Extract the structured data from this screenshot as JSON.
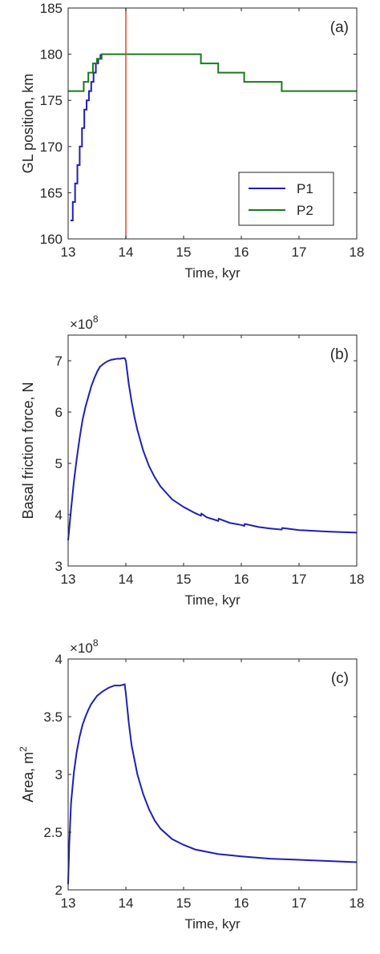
{
  "chart_data": [
    {
      "type": "line",
      "panel_label": "(a)",
      "xlabel": "Time, kyr",
      "ylabel": "GL position, km",
      "exponent": "",
      "xlim": [
        13,
        18
      ],
      "ylim": [
        160,
        185
      ],
      "xticks": [
        "13",
        "14",
        "15",
        "16",
        "17",
        "18"
      ],
      "yticks": [
        "160",
        "165",
        "170",
        "175",
        "180",
        "185"
      ],
      "legend_position": "lower-right",
      "series": [
        {
          "name": "P1",
          "color": "#1f1fb4",
          "style": "staircase",
          "x": [
            13.04,
            13.08,
            13.12,
            13.16,
            13.2,
            13.24,
            13.28,
            13.32,
            13.36,
            13.4,
            13.44,
            13.48,
            13.52,
            13.56
          ],
          "y": [
            162,
            164,
            166,
            168,
            170,
            172,
            174,
            175,
            176,
            177,
            178,
            179,
            179.5,
            180
          ]
        },
        {
          "name": "P2",
          "color": "#1a7a1a",
          "style": "staircase",
          "x": [
            13.0,
            13.27,
            13.35,
            13.43,
            13.5,
            13.58,
            14.0,
            15.0,
            15.3,
            15.6,
            16.05,
            16.7,
            18.0
          ],
          "y": [
            176,
            177,
            178,
            179,
            179.5,
            180,
            180,
            180,
            179,
            178,
            177,
            176,
            176
          ]
        },
        {
          "name": "",
          "color": "#e8432b",
          "style": "vertical-marker",
          "x": [
            14.0,
            14.0
          ],
          "y": [
            160,
            185
          ]
        }
      ]
    },
    {
      "type": "line",
      "panel_label": "(b)",
      "xlabel": "Time, kyr",
      "ylabel": "Basal friction force, N",
      "exponent": "8",
      "xlim": [
        13,
        18
      ],
      "ylim": [
        3,
        7.5
      ],
      "xticks": [
        "13",
        "14",
        "15",
        "16",
        "17",
        "18"
      ],
      "yticks": [
        "3",
        "4",
        "5",
        "6",
        "7"
      ],
      "series": [
        {
          "name": "",
          "color": "#1f1fb4",
          "x": [
            13.0,
            13.05,
            13.1,
            13.15,
            13.2,
            13.25,
            13.3,
            13.35,
            13.4,
            13.45,
            13.5,
            13.55,
            13.6,
            13.65,
            13.7,
            13.75,
            13.8,
            13.85,
            13.9,
            13.95,
            13.98,
            14.0,
            14.05,
            14.1,
            14.15,
            14.2,
            14.3,
            14.4,
            14.5,
            14.6,
            14.8,
            15.0,
            15.2,
            15.3,
            15.31,
            15.4,
            15.6,
            15.61,
            15.8,
            16.0,
            16.05,
            16.06,
            16.3,
            16.5,
            16.7,
            16.71,
            17.0,
            17.5,
            18.0
          ],
          "y": [
            3.5,
            4.1,
            4.65,
            5.1,
            5.5,
            5.85,
            6.1,
            6.3,
            6.5,
            6.65,
            6.78,
            6.88,
            6.93,
            6.97,
            7.0,
            7.02,
            7.03,
            7.04,
            7.04,
            7.05,
            7.05,
            7.0,
            6.55,
            6.2,
            5.9,
            5.65,
            5.25,
            4.95,
            4.73,
            4.55,
            4.3,
            4.15,
            4.03,
            3.98,
            4.02,
            3.95,
            3.88,
            3.92,
            3.84,
            3.8,
            3.78,
            3.82,
            3.76,
            3.73,
            3.71,
            3.74,
            3.7,
            3.67,
            3.65
          ]
        }
      ]
    },
    {
      "type": "line",
      "panel_label": "(c)",
      "xlabel": "Time, kyr",
      "ylabel": "Area, m",
      "ylabel_superscript": "2",
      "exponent": "8",
      "xlim": [
        13,
        18
      ],
      "ylim": [
        2,
        4
      ],
      "xticks": [
        "13",
        "14",
        "15",
        "16",
        "17",
        "18"
      ],
      "yticks": [
        "2",
        "2.5",
        "3",
        "3.5",
        "4"
      ],
      "series": [
        {
          "name": "",
          "color": "#1f1fb4",
          "x": [
            13.0,
            13.02,
            13.05,
            13.1,
            13.15,
            13.2,
            13.25,
            13.3,
            13.35,
            13.4,
            13.5,
            13.6,
            13.7,
            13.8,
            13.9,
            13.98,
            14.0,
            14.05,
            14.1,
            14.2,
            14.3,
            14.4,
            14.5,
            14.6,
            14.8,
            15.0,
            15.2,
            15.4,
            15.6,
            15.8,
            16.0,
            16.5,
            17.0,
            17.5,
            18.0
          ],
          "y": [
            2.05,
            2.4,
            2.75,
            3.02,
            3.2,
            3.33,
            3.43,
            3.5,
            3.56,
            3.61,
            3.68,
            3.72,
            3.75,
            3.77,
            3.77,
            3.78,
            3.7,
            3.45,
            3.25,
            3.0,
            2.83,
            2.7,
            2.6,
            2.53,
            2.44,
            2.39,
            2.35,
            2.33,
            2.31,
            2.3,
            2.29,
            2.27,
            2.26,
            2.25,
            2.24
          ]
        }
      ]
    }
  ]
}
